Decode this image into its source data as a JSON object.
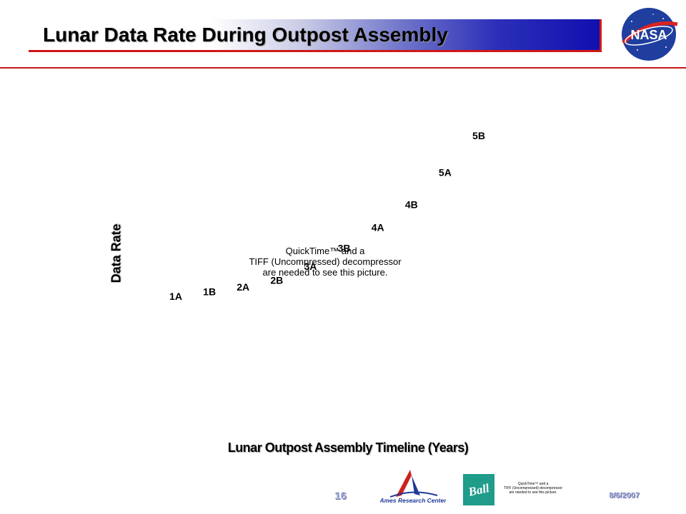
{
  "slide": {
    "title": "Lunar Data Rate During Outpost Assembly",
    "page_number": "16",
    "date": "8/6/2007"
  },
  "placeholder": {
    "lines": [
      "QuickTime™ and a",
      "TIFF (Uncompressed) decompressor",
      "are needed to see this picture."
    ]
  },
  "footer": {
    "ames_label": "Ames Research Center",
    "ball_label": "Ball",
    "small_placeholder_lines": [
      "QuickTime™ and a",
      "TIFF (Uncompressed) decompressor",
      "are needed to see this picture."
    ]
  },
  "logos": {
    "nasa_text": "NASA"
  },
  "colors": {
    "accent_red": "#c81818",
    "banner_blue": "#1010b0",
    "footer_blue": "#aab0d8",
    "ball_green": "#1f9c8a"
  },
  "chart_data": {
    "type": "scatter",
    "xlabel": "Lunar Outpost Assembly Timeline (Years)",
    "ylabel": "Data Rate",
    "points": [
      {
        "label": "1A",
        "x": 1,
        "y": 1.0
      },
      {
        "label": "1B",
        "x": 2,
        "y": 1.2
      },
      {
        "label": "2A",
        "x": 3,
        "y": 1.4
      },
      {
        "label": "2B",
        "x": 4,
        "y": 1.7
      },
      {
        "label": "3A",
        "x": 5,
        "y": 2.3
      },
      {
        "label": "3B",
        "x": 6,
        "y": 3.1
      },
      {
        "label": "4A",
        "x": 7,
        "y": 4.0
      },
      {
        "label": "4B",
        "x": 8,
        "y": 5.0
      },
      {
        "label": "5A",
        "x": 9,
        "y": 6.4
      },
      {
        "label": "5B",
        "x": 10,
        "y": 8.0
      }
    ],
    "xlim": [
      1,
      10
    ],
    "ylim": [
      1,
      8
    ],
    "grid": false,
    "legend": "none"
  }
}
